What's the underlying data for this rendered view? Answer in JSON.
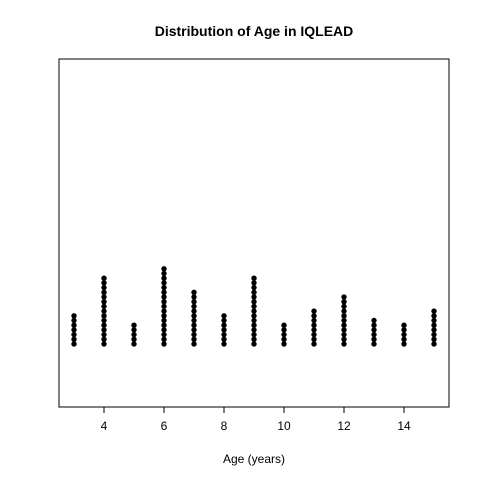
{
  "chart_data": {
    "type": "scatter",
    "subtype": "stacked-dot-plot",
    "title": "Distribution of Age in IQLEAD",
    "xlabel": "Age (years)",
    "ylabel": "",
    "xlim": [
      2.5,
      15.5
    ],
    "x_ticks": [
      4,
      6,
      8,
      10,
      12,
      14
    ],
    "y_axis_shown": false,
    "grid": false,
    "legend": "none",
    "point_color": "#000000",
    "bins": [
      {
        "age": 3,
        "count": 7
      },
      {
        "age": 4,
        "count": 15
      },
      {
        "age": 5,
        "count": 5
      },
      {
        "age": 6,
        "count": 17
      },
      {
        "age": 7,
        "count": 12
      },
      {
        "age": 8,
        "count": 7
      },
      {
        "age": 9,
        "count": 15
      },
      {
        "age": 10,
        "count": 5
      },
      {
        "age": 11,
        "count": 8
      },
      {
        "age": 12,
        "count": 11
      },
      {
        "age": 13,
        "count": 6
      },
      {
        "age": 14,
        "count": 5
      },
      {
        "age": 15,
        "count": 8
      }
    ]
  }
}
